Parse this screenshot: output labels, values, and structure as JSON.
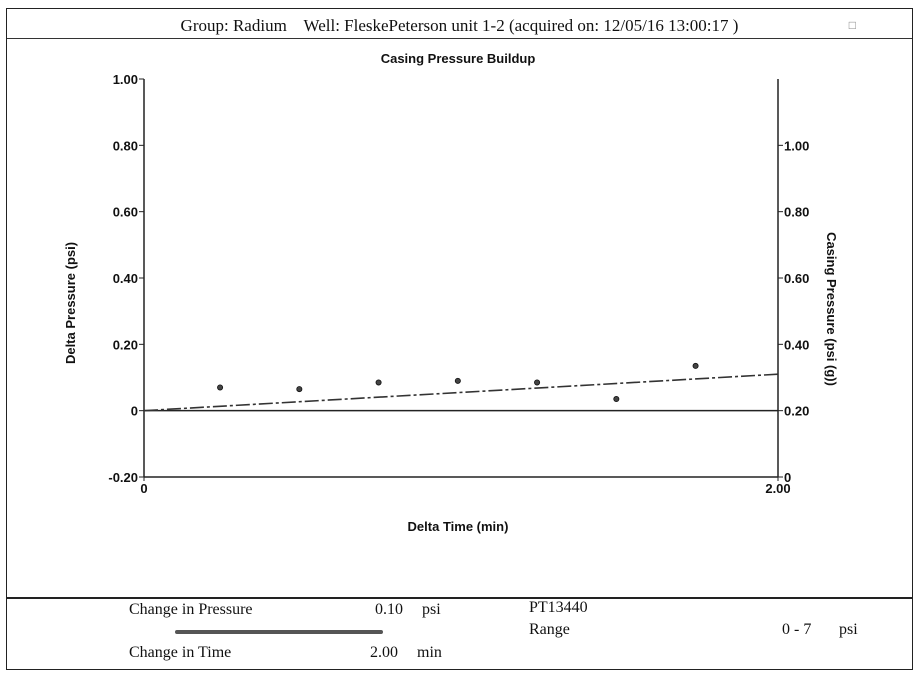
{
  "header": {
    "group_label": "Group:",
    "group_value": "Radium",
    "well_label": "Well:",
    "well_value": "FleskePeterson unit 1-2",
    "acquired": "(acquired on: 12/05/16 13:00:17 )"
  },
  "chart_data": {
    "type": "scatter",
    "title": "Casing Pressure Buildup",
    "xlabel": "Delta Time (min)",
    "ylabel": "Delta Pressure (psi)",
    "y2label": "Casing Pressure (psi (g))",
    "xlim": [
      0,
      2.0
    ],
    "ylim": [
      -0.2,
      1.0
    ],
    "y2lim": [
      0.0,
      1.2
    ],
    "x_ticks": [
      "0",
      "2.00"
    ],
    "y_ticks": [
      "1.00",
      "0.80",
      "0.60",
      "0.40",
      "0.20",
      "0",
      "-0.20"
    ],
    "y2_ticks": [
      "1.00",
      "0.80",
      "0.60",
      "0.40",
      "0.20",
      "0"
    ],
    "grid": false,
    "series": [
      {
        "kind": "points",
        "x": [
          0.24,
          0.49,
          0.74,
          0.99,
          1.24,
          1.49,
          1.74
        ],
        "y": [
          0.07,
          0.065,
          0.085,
          0.09,
          0.085,
          0.035,
          0.135
        ]
      },
      {
        "kind": "line",
        "x": [
          0.0,
          2.0
        ],
        "y": [
          0.0,
          0.11
        ]
      }
    ]
  },
  "info": {
    "change_pressure_label": "Change in Pressure",
    "change_pressure_value": "0.10",
    "change_pressure_unit": "psi",
    "change_time_label": "Change in Time",
    "change_time_value": "2.00",
    "change_time_unit": "min",
    "sensor_id": "PT13440",
    "range_label": "Range",
    "range_value": "0 - 7",
    "range_unit": "psi"
  }
}
